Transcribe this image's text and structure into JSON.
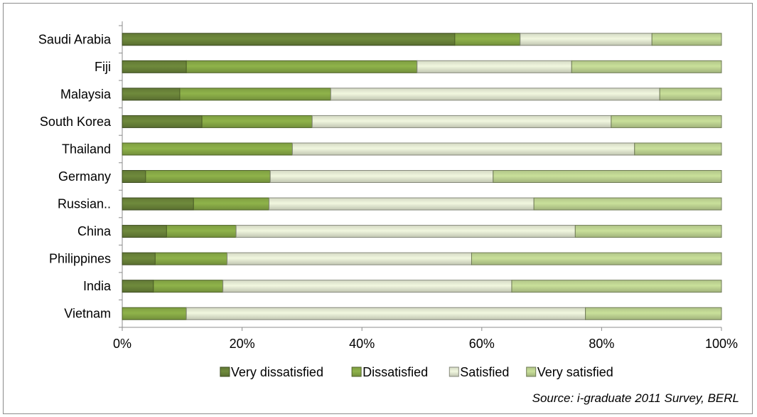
{
  "chart_data": {
    "type": "bar",
    "orientation": "horizontal",
    "stacked": "percent",
    "categories": [
      "Saudi Arabia",
      "Fiji",
      "Malaysia",
      "South Korea",
      "Thailand",
      "Germany",
      "Russian..",
      "China",
      "Philippines",
      "India",
      "Vietnam"
    ],
    "series": [
      {
        "name": "Very dissatisfied",
        "color": "#6f8a3c",
        "values": [
          55.5,
          10.7,
          9.6,
          13.3,
          0,
          3.9,
          11.9,
          7.4,
          5.5,
          5.2,
          0
        ]
      },
      {
        "name": "Dissatisfied",
        "color": "#8fb34a",
        "values": [
          10.9,
          38.5,
          25.2,
          18.4,
          28.4,
          20.8,
          12.6,
          11.6,
          12.0,
          11.6,
          10.7
        ]
      },
      {
        "name": "Satisfied",
        "color": "#f1f7df",
        "values": [
          22.0,
          25.8,
          54.9,
          49.9,
          57.1,
          37.2,
          44.2,
          56.6,
          40.8,
          48.2,
          66.6
        ]
      },
      {
        "name": "Very satisfied",
        "color": "#c9e09a",
        "values": [
          11.6,
          25.0,
          10.3,
          18.4,
          14.5,
          38.1,
          31.3,
          24.4,
          41.7,
          35.0,
          22.7
        ]
      }
    ],
    "x_ticks": [
      "0%",
      "20%",
      "40%",
      "60%",
      "80%",
      "100%"
    ],
    "xlim": [
      0,
      100
    ],
    "grid": false,
    "legend_position": "bottom",
    "source": "Source: i-graduate 2011 Survey, BERL"
  }
}
